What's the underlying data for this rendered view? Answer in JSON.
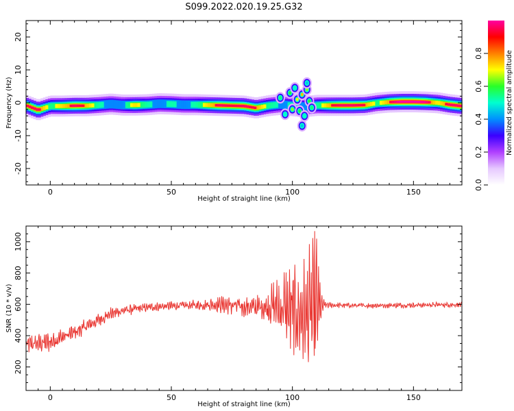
{
  "title": "S099.2022.020.19.25.G32",
  "colors": {
    "snr_line": "#e8302b",
    "spectrogram_background": "#ffffff",
    "colormap": [
      "#ffffff",
      "#e6c8ff",
      "#b040ff",
      "#3a00ff",
      "#0090ff",
      "#00ffd0",
      "#28ff28",
      "#ffff00",
      "#ff8000",
      "#ff0000",
      "#ff00a0"
    ]
  },
  "chart_data": [
    {
      "type": "heatmap",
      "title": "S099.2022.020.19.25.G32",
      "xlabel": "Height of straight line (km)",
      "ylabel": "Frequency (Hz)",
      "xlim": [
        -10,
        170
      ],
      "ylim": [
        -25,
        25
      ],
      "xticks": [
        0,
        50,
        100,
        150
      ],
      "yticks": [
        -20,
        -10,
        0,
        10,
        20
      ],
      "colorbar": {
        "label": "Normalized spectral amplitude",
        "range": [
          0,
          1
        ],
        "ticks": [
          "0.0",
          "0.2",
          "0.4",
          "0.6",
          "0.8"
        ]
      },
      "ridge": [
        {
          "x": -10,
          "freq": -0.8,
          "amp": 0.85
        },
        {
          "x": -5,
          "freq": -2.2,
          "amp": 0.9
        },
        {
          "x": 0,
          "freq": -1.0,
          "amp": 0.6
        },
        {
          "x": 5,
          "freq": -1.0,
          "amp": 0.75
        },
        {
          "x": 10,
          "freq": -0.9,
          "amp": 0.9
        },
        {
          "x": 15,
          "freq": -0.9,
          "amp": 0.8
        },
        {
          "x": 20,
          "freq": -0.7,
          "amp": 0.55
        },
        {
          "x": 25,
          "freq": -0.4,
          "amp": 0.5
        },
        {
          "x": 30,
          "freq": -0.7,
          "amp": 0.5
        },
        {
          "x": 35,
          "freq": -0.7,
          "amp": 0.75
        },
        {
          "x": 40,
          "freq": -0.6,
          "amp": 0.55
        },
        {
          "x": 45,
          "freq": -0.3,
          "amp": 0.5
        },
        {
          "x": 50,
          "freq": -0.4,
          "amp": 0.55
        },
        {
          "x": 55,
          "freq": -0.6,
          "amp": 0.5
        },
        {
          "x": 60,
          "freq": -0.6,
          "amp": 0.55
        },
        {
          "x": 65,
          "freq": -0.7,
          "amp": 0.75
        },
        {
          "x": 70,
          "freq": -0.8,
          "amp": 0.9
        },
        {
          "x": 75,
          "freq": -0.9,
          "amp": 0.85
        },
        {
          "x": 80,
          "freq": -1.0,
          "amp": 0.9
        },
        {
          "x": 85,
          "freq": -1.6,
          "amp": 0.85
        },
        {
          "x": 90,
          "freq": -0.9,
          "amp": 0.6
        },
        {
          "x": 95,
          "freq": -0.5,
          "amp": 0.5
        },
        {
          "x": 100,
          "freq": -0.9,
          "amp": 0.55
        },
        {
          "x": 105,
          "freq": -1.2,
          "amp": 0.5
        },
        {
          "x": 110,
          "freq": -0.8,
          "amp": 0.55
        },
        {
          "x": 115,
          "freq": -0.8,
          "amp": 0.8
        },
        {
          "x": 120,
          "freq": -0.8,
          "amp": 0.9
        },
        {
          "x": 125,
          "freq": -0.8,
          "amp": 0.9
        },
        {
          "x": 130,
          "freq": -0.7,
          "amp": 0.85
        },
        {
          "x": 135,
          "freq": -0.1,
          "amp": 0.6
        },
        {
          "x": 140,
          "freq": 0.2,
          "amp": 0.85
        },
        {
          "x": 145,
          "freq": 0.3,
          "amp": 1.0
        },
        {
          "x": 150,
          "freq": 0.3,
          "amp": 1.0
        },
        {
          "x": 155,
          "freq": 0.2,
          "amp": 0.95
        },
        {
          "x": 160,
          "freq": 0.0,
          "amp": 0.7
        },
        {
          "x": 165,
          "freq": -0.6,
          "amp": 0.9
        },
        {
          "x": 170,
          "freq": -1.0,
          "amp": 0.9
        }
      ],
      "scatter_blobs": [
        {
          "x": 95,
          "freq": 1.5,
          "amp": 0.55
        },
        {
          "x": 97,
          "freq": -3.5,
          "amp": 0.5
        },
        {
          "x": 99,
          "freq": 3.0,
          "amp": 0.6
        },
        {
          "x": 100,
          "freq": -2.0,
          "amp": 0.65
        },
        {
          "x": 101,
          "freq": 4.5,
          "amp": 0.5
        },
        {
          "x": 102,
          "freq": 1.0,
          "amp": 0.7
        },
        {
          "x": 103,
          "freq": -2.5,
          "amp": 0.6
        },
        {
          "x": 104,
          "freq": 2.5,
          "amp": 0.75
        },
        {
          "x": 105,
          "freq": -4.0,
          "amp": 0.5
        },
        {
          "x": 106,
          "freq": 4.0,
          "amp": 0.65
        },
        {
          "x": 107,
          "freq": 0.5,
          "amp": 0.6
        },
        {
          "x": 108,
          "freq": -1.5,
          "amp": 0.55
        },
        {
          "x": 104,
          "freq": -7.0,
          "amp": 0.45
        },
        {
          "x": 106,
          "freq": 6.0,
          "amp": 0.45
        }
      ]
    },
    {
      "type": "line",
      "xlabel": "Height of straight line (km)",
      "ylabel": "SNR (10 * v/v)",
      "xlim": [
        -10,
        170
      ],
      "ylim": [
        50,
        1100
      ],
      "xticks": [
        0,
        50,
        100,
        150
      ],
      "yticks": [
        200,
        400,
        600,
        800,
        1000
      ],
      "trend": [
        {
          "x": -10,
          "y": 340,
          "noise": 55
        },
        {
          "x": 0,
          "y": 360,
          "noise": 55
        },
        {
          "x": 5,
          "y": 390,
          "noise": 50
        },
        {
          "x": 10,
          "y": 420,
          "noise": 45
        },
        {
          "x": 15,
          "y": 460,
          "noise": 40
        },
        {
          "x": 20,
          "y": 500,
          "noise": 40
        },
        {
          "x": 25,
          "y": 540,
          "noise": 35
        },
        {
          "x": 30,
          "y": 560,
          "noise": 30
        },
        {
          "x": 40,
          "y": 580,
          "noise": 25
        },
        {
          "x": 50,
          "y": 590,
          "noise": 25
        },
        {
          "x": 60,
          "y": 595,
          "noise": 30
        },
        {
          "x": 70,
          "y": 600,
          "noise": 45
        },
        {
          "x": 80,
          "y": 585,
          "noise": 60
        },
        {
          "x": 88,
          "y": 580,
          "noise": 70
        },
        {
          "x": 92,
          "y": 590,
          "noise": 130
        },
        {
          "x": 97,
          "y": 570,
          "noise": 230
        },
        {
          "x": 102,
          "y": 540,
          "noise": 260
        },
        {
          "x": 106,
          "y": 520,
          "noise": 330
        },
        {
          "x": 110,
          "y": 580,
          "noise": 420
        },
        {
          "x": 112,
          "y": 590,
          "noise": 60
        },
        {
          "x": 115,
          "y": 595,
          "noise": 15
        },
        {
          "x": 130,
          "y": 592,
          "noise": 15
        },
        {
          "x": 150,
          "y": 595,
          "noise": 15
        },
        {
          "x": 170,
          "y": 598,
          "noise": 15
        }
      ]
    }
  ]
}
